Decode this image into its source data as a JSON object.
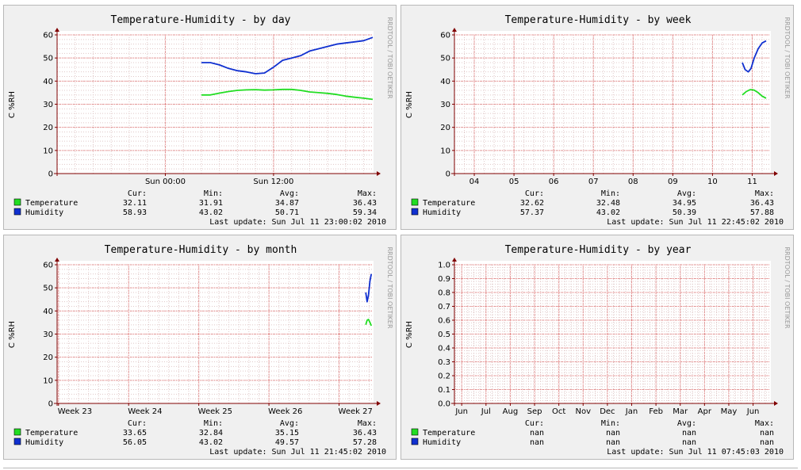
{
  "side_text": "RRDTOOL / TOBI OETIKER",
  "legend_headers": {
    "cur": "Cur:",
    "min": "Min:",
    "avg": "Avg:",
    "max": "Max:"
  },
  "colors": {
    "temperature": "#22dd22",
    "humidity": "#1030d0",
    "grid_minor": "#e0c8c8",
    "grid_major": "#e07070",
    "axis": "#800000"
  },
  "chart_data": [
    {
      "type": "line",
      "title": "Temperature-Humidity - by day",
      "ylabel": "C %RH",
      "ylim": [
        0,
        60
      ],
      "yticks": [
        0,
        10,
        20,
        30,
        40,
        50,
        60
      ],
      "xlim": [
        -12,
        23
      ],
      "xticks": [
        {
          "x": 0,
          "label": "Sun 00:00"
        },
        {
          "x": 12,
          "label": "Sun 12:00"
        }
      ],
      "series": [
        {
          "name": "Temperature",
          "color": "#22dd22",
          "x": [
            4,
            5,
            6,
            7,
            8,
            9,
            10,
            11,
            12,
            13,
            14,
            15,
            16,
            17,
            18,
            19,
            20,
            21,
            22,
            23
          ],
          "y": [
            34,
            34,
            34.8,
            35.5,
            36,
            36.2,
            36.3,
            36.1,
            36.2,
            36.4,
            36.4,
            36,
            35.3,
            35,
            34.7,
            34.2,
            33.5,
            33,
            32.6,
            32.1
          ]
        },
        {
          "name": "Humidity",
          "color": "#1030d0",
          "x": [
            4,
            5,
            6,
            7,
            8,
            9,
            10,
            11,
            12,
            13,
            14,
            15,
            16,
            17,
            18,
            19,
            20,
            21,
            22,
            23
          ],
          "y": [
            48,
            48,
            47,
            45.5,
            44.5,
            44,
            43.2,
            43.5,
            46,
            49,
            50,
            51,
            53,
            54,
            55,
            56,
            56.5,
            57,
            57.5,
            58.9
          ]
        }
      ],
      "legend": [
        {
          "name": "Temperature",
          "cur": "32.11",
          "min": "31.91",
          "avg": "34.87",
          "max": "36.43"
        },
        {
          "name": "Humidity",
          "cur": "58.93",
          "min": "43.02",
          "avg": "50.71",
          "max": "59.34"
        }
      ],
      "last_update": "Last update: Sun Jul 11 23:00:02 2010"
    },
    {
      "type": "line",
      "title": "Temperature-Humidity - by week",
      "ylabel": "C %RH",
      "ylim": [
        0,
        60
      ],
      "yticks": [
        0,
        10,
        20,
        30,
        40,
        50,
        60
      ],
      "xlim": [
        3.5,
        11.45
      ],
      "xticks": [
        {
          "x": 4,
          "label": "04"
        },
        {
          "x": 5,
          "label": "05"
        },
        {
          "x": 6,
          "label": "06"
        },
        {
          "x": 7,
          "label": "07"
        },
        {
          "x": 8,
          "label": "08"
        },
        {
          "x": 9,
          "label": "09"
        },
        {
          "x": 10,
          "label": "10"
        },
        {
          "x": 11,
          "label": "11"
        }
      ],
      "series": [
        {
          "name": "Temperature",
          "color": "#22dd22",
          "x": [
            10.75,
            10.85,
            10.95,
            11.05,
            11.15,
            11.25,
            11.35
          ],
          "y": [
            34,
            35.5,
            36.3,
            36.1,
            35,
            33.5,
            32.6
          ]
        },
        {
          "name": "Humidity",
          "color": "#1030d0",
          "x": [
            10.75,
            10.82,
            10.9,
            10.97,
            11.05,
            11.15,
            11.25,
            11.35
          ],
          "y": [
            48,
            45,
            44,
            45.5,
            50,
            54,
            56.5,
            57.4
          ]
        }
      ],
      "legend": [
        {
          "name": "Temperature",
          "cur": "32.62",
          "min": "32.48",
          "avg": "34.95",
          "max": "36.43"
        },
        {
          "name": "Humidity",
          "cur": "57.37",
          "min": "43.02",
          "avg": "50.39",
          "max": "57.88"
        }
      ],
      "last_update": "Last update: Sun Jul 11 22:45:02 2010"
    },
    {
      "type": "line",
      "title": "Temperature-Humidity - by month",
      "ylabel": "C %RH",
      "ylim": [
        0,
        60
      ],
      "yticks": [
        0,
        10,
        20,
        30,
        40,
        50,
        60
      ],
      "xlim": [
        22.98,
        27.48
      ],
      "xticks": [
        {
          "x": 23,
          "label": "Week 23"
        },
        {
          "x": 24,
          "label": "Week 24"
        },
        {
          "x": 25,
          "label": "Week 25"
        },
        {
          "x": 26,
          "label": "Week 26"
        },
        {
          "x": 27,
          "label": "Week 27"
        }
      ],
      "series": [
        {
          "name": "Temperature",
          "color": "#22dd22",
          "x": [
            27.38,
            27.4,
            27.42,
            27.44,
            27.46
          ],
          "y": [
            34,
            36,
            36.3,
            35,
            33.6
          ]
        },
        {
          "name": "Humidity",
          "color": "#1030d0",
          "x": [
            27.38,
            27.4,
            27.42,
            27.44,
            27.46
          ],
          "y": [
            48,
            44,
            47,
            53,
            56
          ]
        }
      ],
      "legend": [
        {
          "name": "Temperature",
          "cur": "33.65",
          "min": "32.84",
          "avg": "35.15",
          "max": "36.43"
        },
        {
          "name": "Humidity",
          "cur": "56.05",
          "min": "43.02",
          "avg": "49.57",
          "max": "57.28"
        }
      ],
      "last_update": "Last update: Sun Jul 11 21:45:02 2010"
    },
    {
      "type": "line",
      "title": "Temperature-Humidity - by year",
      "ylabel": "C %RH",
      "ylim": [
        0,
        1
      ],
      "yticks": [
        0.0,
        0.1,
        0.2,
        0.3,
        0.4,
        0.5,
        0.6,
        0.7,
        0.8,
        0.9,
        1.0
      ],
      "ytick_labels": [
        "0.0",
        "0.1",
        "0.2",
        "0.3",
        "0.4",
        "0.5",
        "0.6",
        "0.7",
        "0.8",
        "0.9",
        "1.0"
      ],
      "xlim": [
        -0.3,
        12.7
      ],
      "xticks": [
        {
          "x": 0,
          "label": "Jun"
        },
        {
          "x": 1,
          "label": "Jul"
        },
        {
          "x": 2,
          "label": "Aug"
        },
        {
          "x": 3,
          "label": "Sep"
        },
        {
          "x": 4,
          "label": "Oct"
        },
        {
          "x": 5,
          "label": "Nov"
        },
        {
          "x": 6,
          "label": "Dec"
        },
        {
          "x": 7,
          "label": "Jan"
        },
        {
          "x": 8,
          "label": "Feb"
        },
        {
          "x": 9,
          "label": "Mar"
        },
        {
          "x": 10,
          "label": "Apr"
        },
        {
          "x": 11,
          "label": "May"
        },
        {
          "x": 12,
          "label": "Jun"
        }
      ],
      "series": [
        {
          "name": "Temperature",
          "color": "#22dd22",
          "x": [],
          "y": []
        },
        {
          "name": "Humidity",
          "color": "#1030d0",
          "x": [],
          "y": []
        }
      ],
      "legend": [
        {
          "name": "Temperature",
          "cur": "nan",
          "min": "nan",
          "avg": "nan",
          "max": "nan"
        },
        {
          "name": "Humidity",
          "cur": "nan",
          "min": "nan",
          "avg": "nan",
          "max": "nan"
        }
      ],
      "last_update": "Last update: Sun Jul 11 07:45:03 2010"
    }
  ]
}
